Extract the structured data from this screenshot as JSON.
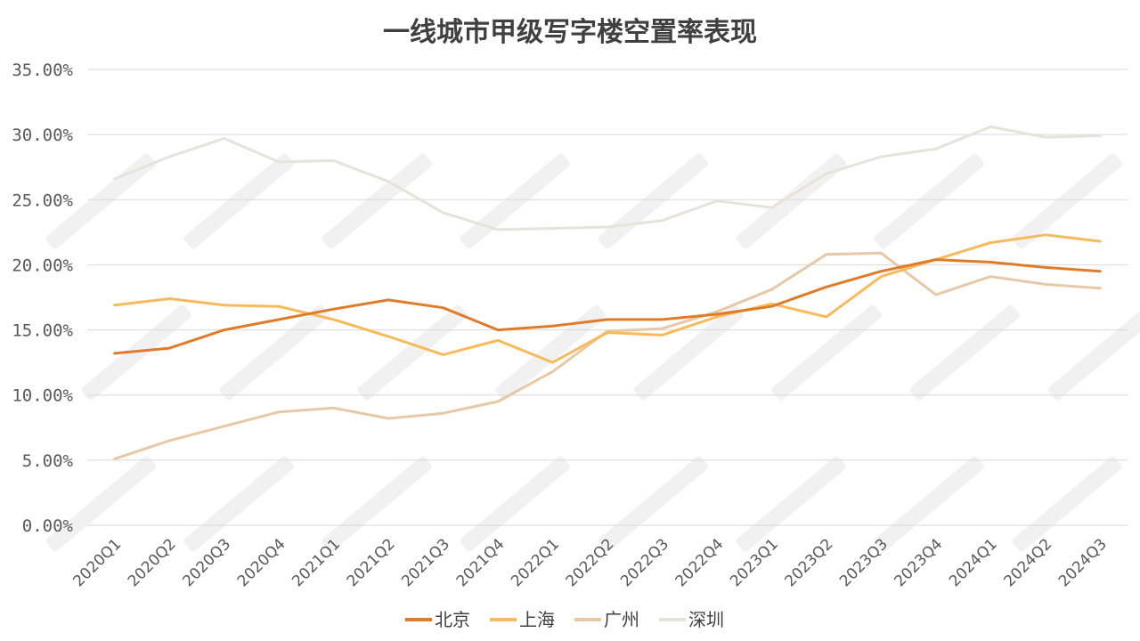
{
  "chart_data": {
    "type": "line",
    "title": "一线城市甲级写字楼空置率表现",
    "xlabel": "",
    "ylabel": "",
    "ylim": [
      0,
      35
    ],
    "yticks": [
      "0.00%",
      "5.00%",
      "10.00%",
      "15.00%",
      "20.00%",
      "25.00%",
      "30.00%",
      "35.00%"
    ],
    "grid": true,
    "legend_position": "bottom",
    "categories": [
      "2020Q1",
      "2020Q2",
      "2020Q3",
      "2020Q4",
      "2021Q1",
      "2021Q2",
      "2021Q3",
      "2021Q4",
      "2022Q1",
      "2022Q2",
      "2022Q3",
      "2022Q4",
      "2023Q1",
      "2023Q2",
      "2023Q3",
      "2023Q4",
      "2024Q1",
      "2024Q2",
      "2024Q3"
    ],
    "series": [
      {
        "name": "北京",
        "color": "#E07B2A",
        "values": [
          13.2,
          13.6,
          15.0,
          15.8,
          16.6,
          17.3,
          16.7,
          15.0,
          15.3,
          15.8,
          15.8,
          16.2,
          16.8,
          18.3,
          19.5,
          20.4,
          20.2,
          19.8,
          19.5
        ]
      },
      {
        "name": "上海",
        "color": "#F7BB5C",
        "values": [
          16.9,
          17.4,
          16.9,
          16.8,
          15.8,
          14.5,
          13.1,
          14.2,
          12.5,
          14.8,
          14.6,
          16.0,
          17.0,
          16.0,
          19.1,
          20.4,
          21.7,
          22.3,
          21.8
        ]
      },
      {
        "name": "广州",
        "color": "#E6C9A6",
        "values": [
          5.1,
          6.5,
          7.6,
          8.7,
          9.0,
          8.2,
          8.6,
          9.5,
          11.8,
          14.9,
          15.1,
          16.4,
          18.1,
          20.8,
          20.9,
          17.7,
          19.1,
          18.5,
          18.2
        ]
      },
      {
        "name": "深圳",
        "color": "#E5E3DA",
        "values": [
          26.6,
          28.3,
          29.7,
          27.9,
          28.0,
          26.4,
          24.0,
          22.7,
          22.8,
          22.9,
          23.4,
          24.9,
          24.4,
          27.0,
          28.3,
          28.9,
          30.6,
          29.8,
          29.9
        ]
      }
    ]
  }
}
